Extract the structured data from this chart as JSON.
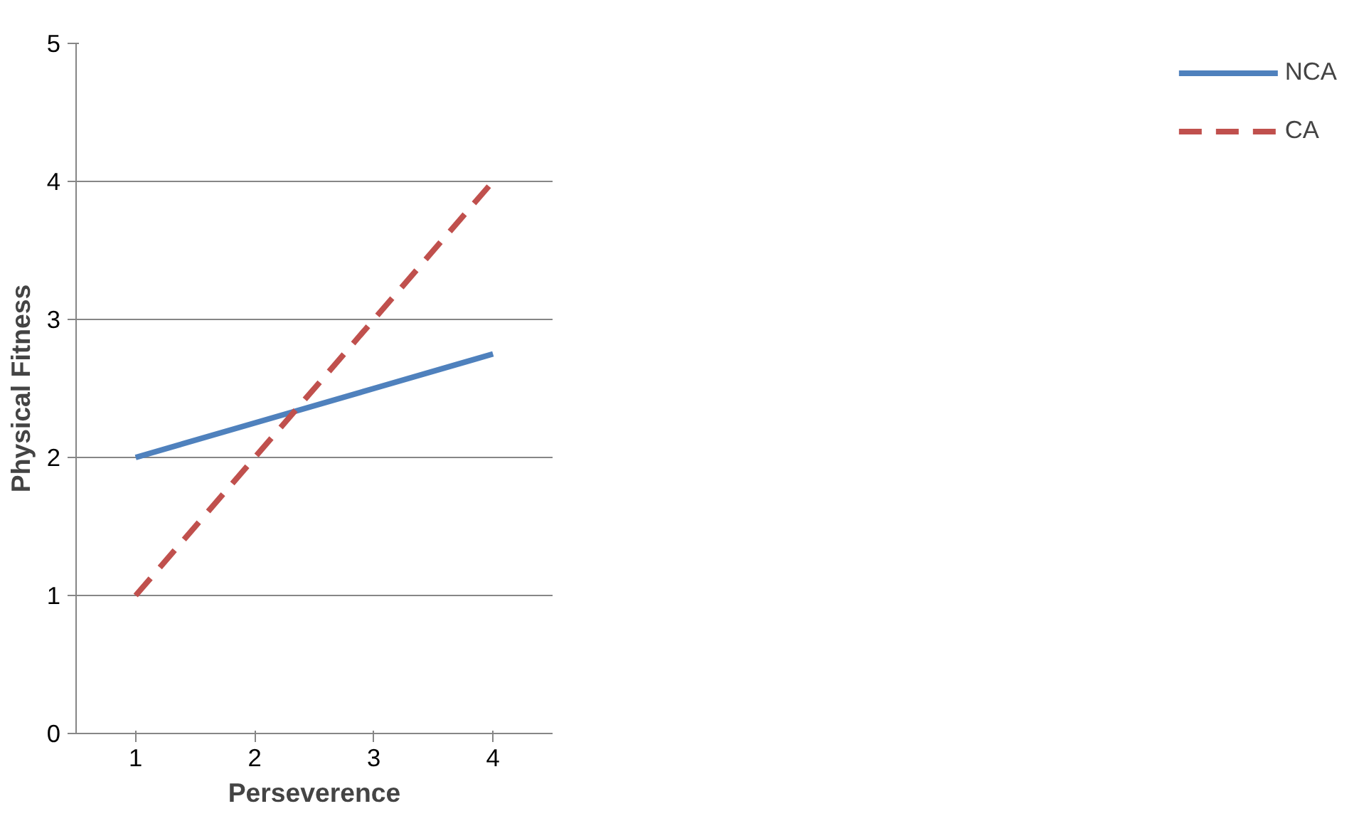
{
  "chart_data": {
    "type": "line",
    "xlabel": "Perseverence",
    "ylabel": "Physical Fitness",
    "categories": [
      "1",
      "2",
      "3",
      "4"
    ],
    "series": [
      {
        "name": "NCA",
        "color": "#4f81bd",
        "values": [
          2,
          2.25,
          2.5,
          2.75
        ],
        "line_style": "solid"
      },
      {
        "name": "CA",
        "color": "#c0504d",
        "values": [
          1,
          2,
          3,
          4
        ],
        "line_style": "dashed"
      }
    ],
    "ylim": [
      0,
      5
    ],
    "yticks": [
      0,
      1,
      2,
      3,
      4,
      5
    ],
    "grid": "y",
    "legend": "right"
  }
}
